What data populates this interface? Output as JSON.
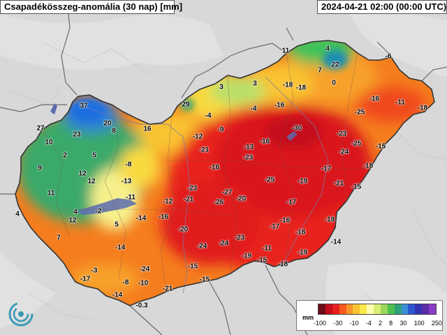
{
  "header": {
    "title": "Csapadékösszeg-anomália (30 nap) [mm]",
    "timestamp": "2024-04-21 02:00 (00:00 UTC)"
  },
  "map": {
    "region": "Hungary",
    "values": [
      {
        "label": "37"
      },
      {
        "label": "27"
      },
      {
        "label": "23"
      },
      {
        "label": "20"
      },
      {
        "label": "16"
      },
      {
        "label": "8"
      },
      {
        "label": "10"
      },
      {
        "label": "2"
      },
      {
        "label": "5"
      },
      {
        "label": "9"
      },
      {
        "label": "12"
      },
      {
        "label": "12"
      },
      {
        "label": "11"
      },
      {
        "label": "4"
      },
      {
        "label": "12"
      },
      {
        "label": "-2"
      },
      {
        "label": "5"
      },
      {
        "label": "7"
      },
      {
        "label": "4"
      },
      {
        "label": "-8"
      },
      {
        "label": "-13"
      },
      {
        "label": "-11"
      },
      {
        "label": "-14"
      },
      {
        "label": "-16"
      },
      {
        "label": "-14"
      },
      {
        "label": "-3"
      },
      {
        "label": "-17"
      },
      {
        "label": "-8"
      },
      {
        "label": "-10"
      },
      {
        "label": "-24"
      },
      {
        "label": "-14"
      },
      {
        "label": "-0.3"
      },
      {
        "label": "-21"
      },
      {
        "label": "-15"
      },
      {
        "label": "-15"
      },
      {
        "label": "-24"
      },
      {
        "label": "-24"
      },
      {
        "label": "-20"
      },
      {
        "label": "-12"
      },
      {
        "label": "-21"
      },
      {
        "label": "-23"
      },
      {
        "label": "-26"
      },
      {
        "label": "-27"
      },
      {
        "label": "-20"
      },
      {
        "label": "-16"
      },
      {
        "label": "-21"
      },
      {
        "label": "-12"
      },
      {
        "label": "-9"
      },
      {
        "label": "-4"
      },
      {
        "label": "29"
      },
      {
        "label": "3"
      },
      {
        "label": "3"
      },
      {
        "label": "-4"
      },
      {
        "label": "-16"
      },
      {
        "label": "-18"
      },
      {
        "label": "-18"
      },
      {
        "label": "11"
      },
      {
        "label": "4"
      },
      {
        "label": "7"
      },
      {
        "label": "22"
      },
      {
        "label": "0"
      },
      {
        "label": "-6"
      },
      {
        "label": "-16"
      },
      {
        "label": "-11"
      },
      {
        "label": "-18"
      },
      {
        "label": "-25"
      },
      {
        "label": "-30"
      },
      {
        "label": "-23"
      },
      {
        "label": "-25"
      },
      {
        "label": "-24"
      },
      {
        "label": "-15"
      },
      {
        "label": "-18"
      },
      {
        "label": "-13"
      },
      {
        "label": "-16"
      },
      {
        "label": "-23"
      },
      {
        "label": "-25"
      },
      {
        "label": "-19"
      },
      {
        "label": "-17"
      },
      {
        "label": "-21"
      },
      {
        "label": "-15"
      },
      {
        "label": "-17"
      },
      {
        "label": "-16"
      },
      {
        "label": "-17"
      },
      {
        "label": "-18"
      },
      {
        "label": "-19"
      },
      {
        "label": "-14"
      },
      {
        "label": "-23"
      },
      {
        "label": "-11"
      },
      {
        "label": "-19"
      },
      {
        "label": "-15"
      },
      {
        "label": "-19"
      },
      {
        "label": "-18"
      }
    ]
  },
  "legend": {
    "unit": "mm",
    "ticks": [
      "-100",
      "-30",
      "-10",
      "-4",
      "2",
      "8",
      "30",
      "100",
      "250"
    ],
    "colors": [
      "#6e0a14",
      "#c20d1a",
      "#e8201e",
      "#f55a1e",
      "#f79628",
      "#f9c331",
      "#fae84a",
      "#ffffb0",
      "#d8ee74",
      "#9bd65a",
      "#4fc04f",
      "#2ea07a",
      "#3c8fd6",
      "#2a57d1",
      "#3233b3",
      "#5a2ca8",
      "#8a3cc8"
    ]
  },
  "colors": {
    "background": "#d9d9d9",
    "border": "#555555",
    "dry": "#d9121b",
    "wet": "#3c8fd6"
  }
}
